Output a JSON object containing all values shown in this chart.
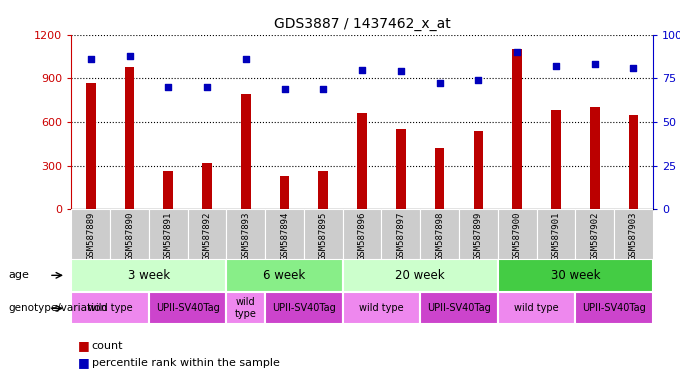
{
  "title": "GDS3887 / 1437462_x_at",
  "samples": [
    "GSM587889",
    "GSM587890",
    "GSM587891",
    "GSM587892",
    "GSM587893",
    "GSM587894",
    "GSM587895",
    "GSM587896",
    "GSM587897",
    "GSM587898",
    "GSM587899",
    "GSM587900",
    "GSM587901",
    "GSM587902",
    "GSM587903"
  ],
  "counts": [
    870,
    980,
    260,
    320,
    790,
    230,
    260,
    660,
    550,
    420,
    540,
    1100,
    680,
    700,
    650
  ],
  "percentiles": [
    86,
    88,
    70,
    70,
    86,
    69,
    69,
    80,
    79,
    72,
    74,
    90,
    82,
    83,
    81
  ],
  "ylim_left": [
    0,
    1200
  ],
  "ylim_right": [
    0,
    100
  ],
  "yticks_left": [
    0,
    300,
    600,
    900,
    1200
  ],
  "yticks_right": [
    0,
    25,
    50,
    75,
    100
  ],
  "bar_color": "#bb0000",
  "dot_color": "#0000bb",
  "age_groups": [
    {
      "label": "3 week",
      "start": 0,
      "end": 4,
      "color": "#ccffcc"
    },
    {
      "label": "6 week",
      "start": 4,
      "end": 7,
      "color": "#88ee88"
    },
    {
      "label": "20 week",
      "start": 7,
      "end": 11,
      "color": "#ccffcc"
    },
    {
      "label": "30 week",
      "start": 11,
      "end": 15,
      "color": "#44cc44"
    }
  ],
  "genotype_groups": [
    {
      "label": "wild type",
      "start": 0,
      "end": 2,
      "color": "#ee88ee"
    },
    {
      "label": "UPII-SV40Tag",
      "start": 2,
      "end": 4,
      "color": "#cc44cc"
    },
    {
      "label": "wild\ntype",
      "start": 4,
      "end": 5,
      "color": "#ee88ee"
    },
    {
      "label": "UPII-SV40Tag",
      "start": 5,
      "end": 7,
      "color": "#cc44cc"
    },
    {
      "label": "wild type",
      "start": 7,
      "end": 9,
      "color": "#ee88ee"
    },
    {
      "label": "UPII-SV40Tag",
      "start": 9,
      "end": 11,
      "color": "#cc44cc"
    },
    {
      "label": "wild type",
      "start": 11,
      "end": 13,
      "color": "#ee88ee"
    },
    {
      "label": "UPII-SV40Tag",
      "start": 13,
      "end": 15,
      "color": "#cc44cc"
    }
  ],
  "grid_color": "#000000",
  "background_color": "#ffffff",
  "tick_label_color_left": "#cc0000",
  "tick_label_color_right": "#0000cc",
  "tick_box_color": "#cccccc"
}
